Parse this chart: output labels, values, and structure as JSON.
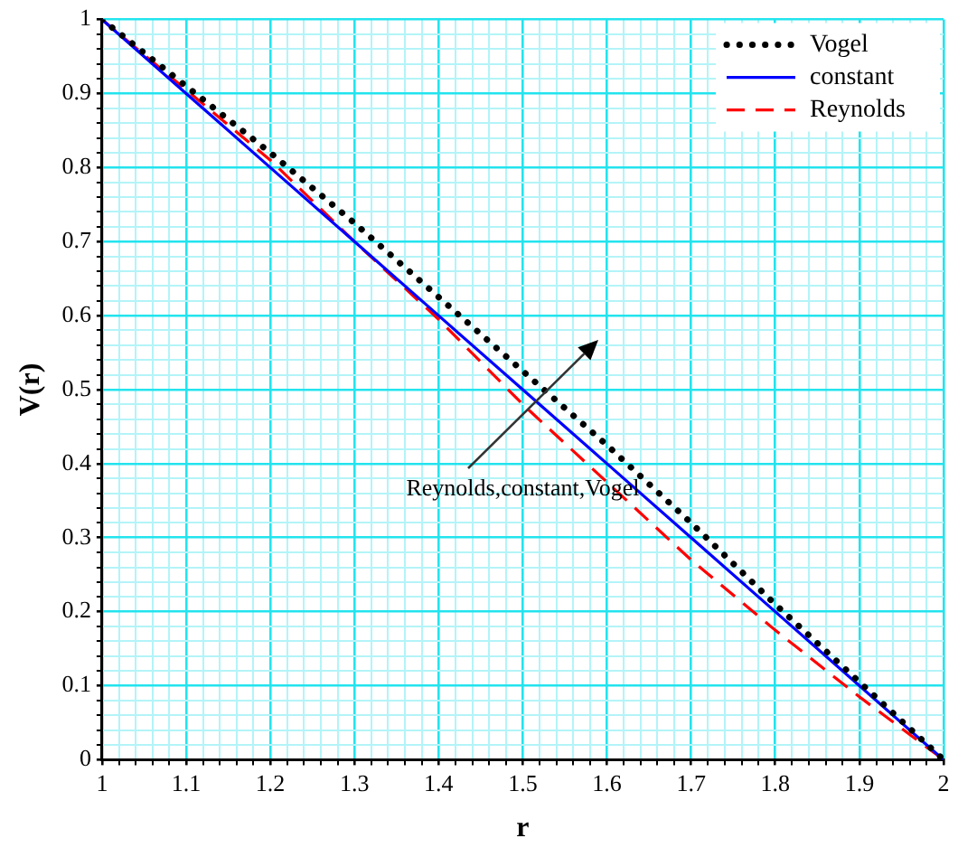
{
  "chart_data": {
    "type": "line",
    "xlabel": "r",
    "ylabel": "V(r)",
    "x": [
      1,
      1.1,
      1.2,
      1.3,
      1.4,
      1.5,
      1.6,
      1.7,
      1.8,
      1.9,
      2
    ],
    "series": [
      {
        "name": "Vogel",
        "color": "#000000",
        "line_style": "dotted",
        "values": [
          1,
          0.91,
          0.82,
          0.725,
          0.625,
          0.525,
          0.425,
          0.32,
          0.21,
          0.105,
          0
        ]
      },
      {
        "name": "constant",
        "color": "#0000ff",
        "line_style": "solid",
        "values": [
          1,
          0.9,
          0.8,
          0.7,
          0.6,
          0.5,
          0.4,
          0.3,
          0.2,
          0.1,
          0
        ]
      },
      {
        "name": "Reynolds",
        "color": "#ff0000",
        "line_style": "dashed",
        "values": [
          1,
          0.905,
          0.81,
          0.7,
          0.595,
          0.48,
          0.375,
          0.27,
          0.175,
          0.085,
          0
        ]
      }
    ],
    "xlim": [
      1,
      2
    ],
    "xticks": [
      1,
      {
        "value": 1.02,
        "label": null
      },
      {
        "value": 1.04,
        "label": null
      },
      {
        "value": 1.06,
        "label": null
      },
      {
        "value": 1.08,
        "label": null
      },
      1.1,
      {
        "value": 1.12,
        "label": null
      },
      {
        "value": 1.14,
        "label": null
      },
      {
        "value": 1.16,
        "label": null
      },
      {
        "value": 1.18,
        "label": null
      },
      1.2,
      {
        "value": 1.22,
        "label": null
      },
      {
        "value": 1.24,
        "label": null
      },
      {
        "value": 1.26,
        "label": null
      },
      {
        "value": 1.28,
        "label": null
      },
      1.3,
      {
        "value": 1.32,
        "label": null
      },
      {
        "value": 1.34,
        "label": null
      },
      {
        "value": 1.36,
        "label": null
      },
      {
        "value": 1.38,
        "label": null
      },
      1.4,
      {
        "value": 1.42,
        "label": null
      },
      {
        "value": 1.44,
        "label": null
      },
      {
        "value": 1.46,
        "label": null
      },
      {
        "value": 1.48,
        "label": null
      },
      1.5,
      {
        "value": 1.52,
        "label": null
      },
      {
        "value": 1.54,
        "label": null
      },
      {
        "value": 1.56,
        "label": null
      },
      {
        "value": 1.58,
        "label": null
      },
      1.6,
      {
        "value": 1.62,
        "label": null
      },
      {
        "value": 1.64,
        "label": null
      },
      {
        "value": 1.66,
        "label": null
      },
      {
        "value": 1.68,
        "label": null
      },
      1.7,
      {
        "value": 1.72,
        "label": null
      },
      {
        "value": 1.74,
        "label": null
      },
      {
        "value": 1.76,
        "label": null
      },
      {
        "value": 1.78,
        "label": null
      },
      1.8,
      {
        "value": 1.82,
        "label": null
      },
      {
        "value": 1.84,
        "label": null
      },
      {
        "value": 1.86,
        "label": null
      },
      {
        "value": 1.88,
        "label": null
      },
      1.9,
      {
        "value": 1.92,
        "label": null
      },
      {
        "value": 1.94,
        "label": null
      },
      {
        "value": 1.96,
        "label": null
      },
      {
        "value": 1.98,
        "label": null
      },
      2
    ],
    "ylim": [
      0,
      1
    ],
    "yticks": [
      0,
      {
        "value": 0.02,
        "label": null
      },
      {
        "value": 0.04,
        "label": null
      },
      {
        "value": 0.06,
        "label": null
      },
      {
        "value": 0.08,
        "label": null
      },
      0.1,
      {
        "value": 0.12,
        "label": null
      },
      {
        "value": 0.14,
        "label": null
      },
      {
        "value": 0.16,
        "label": null
      },
      {
        "value": 0.18,
        "label": null
      },
      0.2,
      {
        "value": 0.22,
        "label": null
      },
      {
        "value": 0.24,
        "label": null
      },
      {
        "value": 0.26,
        "label": null
      },
      {
        "value": 0.28,
        "label": null
      },
      0.3,
      {
        "value": 0.32,
        "label": null
      },
      {
        "value": 0.34,
        "label": null
      },
      {
        "value": 0.36,
        "label": null
      },
      {
        "value": 0.38,
        "label": null
      },
      0.4,
      {
        "value": 0.42,
        "label": null
      },
      {
        "value": 0.44,
        "label": null
      },
      {
        "value": 0.46,
        "label": null
      },
      {
        "value": 0.48,
        "label": null
      },
      0.5,
      {
        "value": 0.52,
        "label": null
      },
      {
        "value": 0.54,
        "label": null
      },
      {
        "value": 0.56,
        "label": null
      },
      {
        "value": 0.58,
        "label": null
      },
      0.6,
      {
        "value": 0.62,
        "label": null
      },
      {
        "value": 0.64,
        "label": null
      },
      {
        "value": 0.66,
        "label": null
      },
      {
        "value": 0.68,
        "label": null
      },
      0.7,
      {
        "value": 0.72,
        "label": null
      },
      {
        "value": 0.74,
        "label": null
      },
      {
        "value": 0.76,
        "label": null
      },
      {
        "value": 0.78,
        "label": null
      },
      0.8,
      {
        "value": 0.82,
        "label": null
      },
      {
        "value": 0.84,
        "label": null
      },
      {
        "value": 0.86,
        "label": null
      },
      {
        "value": 0.88,
        "label": null
      },
      0.9,
      {
        "value": 0.92,
        "label": null
      },
      {
        "value": 0.94,
        "label": null
      },
      {
        "value": 0.96,
        "label": null
      },
      {
        "value": 0.98,
        "label": null
      },
      1
    ],
    "annotations": [
      "Reynolds,constant,Vogel"
    ],
    "grid": true,
    "legend": "top right",
    "marker": "none"
  }
}
